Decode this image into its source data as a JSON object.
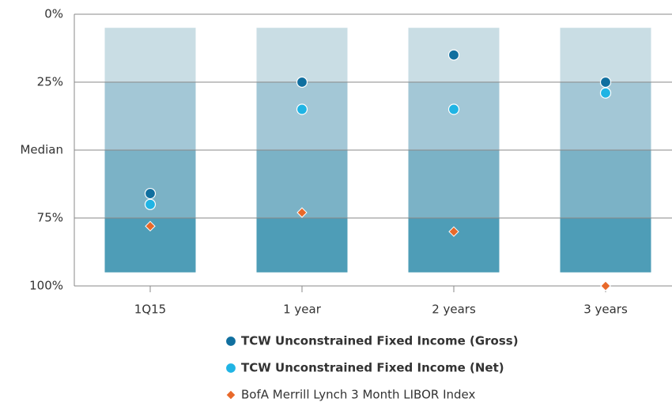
{
  "chart_data": {
    "type": "percentile",
    "categories": [
      "1Q15",
      "1 year",
      "2 years",
      "3 years"
    ],
    "bands": [
      {
        "range": [
          5,
          25
        ],
        "color": "#c9dde4"
      },
      {
        "range": [
          25,
          50
        ],
        "color": "#a3c7d6"
      },
      {
        "range": [
          50,
          75
        ],
        "color": "#7bb2c6"
      },
      {
        "range": [
          75,
          95
        ],
        "color": "#4e9db7"
      }
    ],
    "series": [
      {
        "name": "TCW Unconstrained Fixed Income (Gross)",
        "color": "#106f9f",
        "marker": "circle",
        "values": [
          66,
          25,
          15,
          25
        ]
      },
      {
        "name": "TCW Unconstrained Fixed Income (Net)",
        "color": "#20b4e4",
        "marker": "circle",
        "values": [
          70,
          35,
          35,
          29
        ]
      },
      {
        "name": "BofA Merrill Lynch 3 Month LIBOR Index",
        "color": "#e8692a",
        "marker": "diamond",
        "values": [
          78,
          73,
          80,
          100
        ]
      }
    ],
    "ylim": [
      0,
      100
    ],
    "y_inverted": true,
    "yticks": [
      {
        "value": 0,
        "label": "0%"
      },
      {
        "value": 25,
        "label": "25%"
      },
      {
        "value": 50,
        "label": "Median"
      },
      {
        "value": 75,
        "label": "75%"
      },
      {
        "value": 100,
        "label": "100%"
      }
    ],
    "grid": true
  }
}
